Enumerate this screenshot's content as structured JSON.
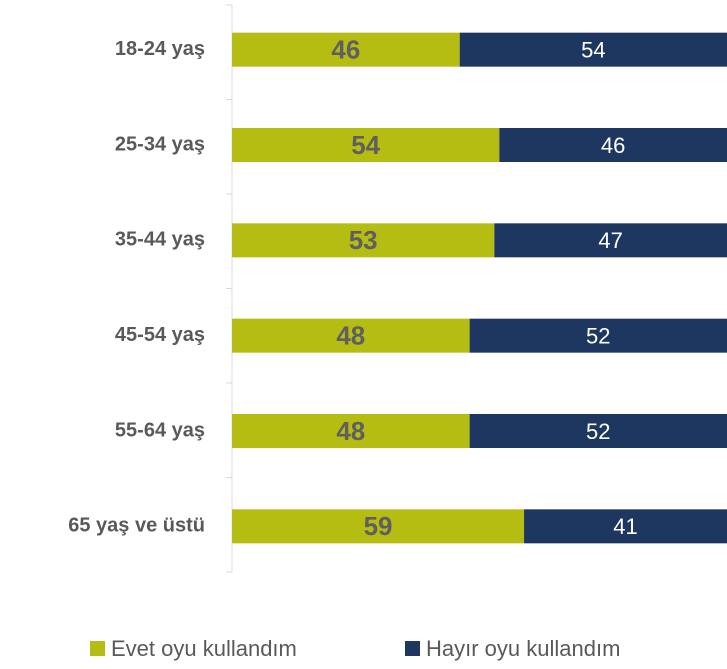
{
  "chart_data": {
    "type": "stacked-barh",
    "categories": [
      "18-24 yaş",
      "25-34 yaş",
      "35-44 yaş",
      "45-54 yaş",
      "55-64 yaş",
      "65 yaş ve üstü"
    ],
    "series": [
      {
        "name": "Evet oyu kullandım",
        "color": "#b5bd13",
        "values": [
          46,
          54,
          53,
          48,
          48,
          59
        ]
      },
      {
        "name": "Hayır oyu kullandım",
        "color": "#1e3760",
        "values": [
          54,
          46,
          47,
          52,
          52,
          41
        ]
      }
    ],
    "xlim": [
      0,
      100
    ]
  }
}
